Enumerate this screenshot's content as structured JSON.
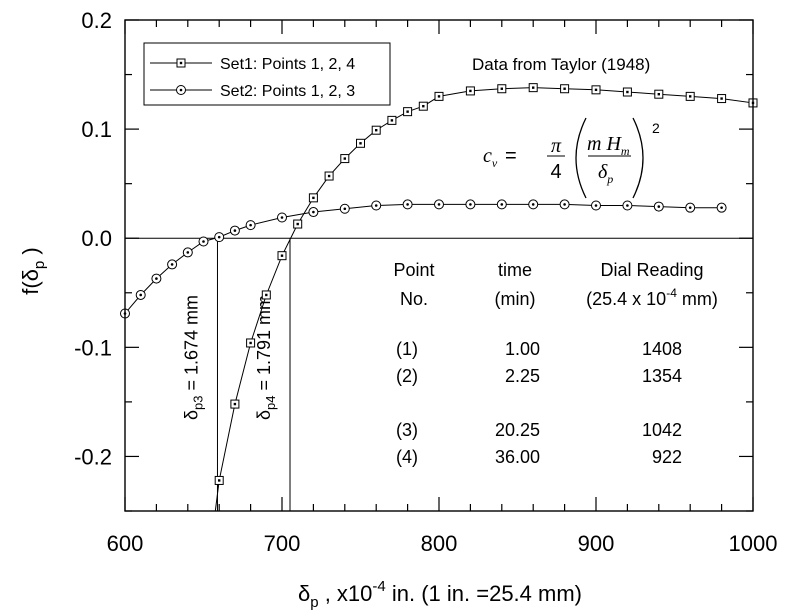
{
  "chart_data": {
    "type": "line",
    "xlabel": {
      "main": "δ",
      "sub": "p",
      "rest1": " ,  x10",
      "sup": "-4",
      "rest2": " in.   (1 in. =25.4 mm)"
    },
    "ylabel": {
      "main": "f(δ",
      "sub": "p",
      "rest": " )"
    },
    "xlim": [
      600,
      1000
    ],
    "ylim": [
      -0.25,
      0.2
    ],
    "x_ticks": [
      600,
      700,
      800,
      900,
      1000
    ],
    "x_tick_labels": [
      "600",
      "700",
      "800",
      "900",
      "1000"
    ],
    "y_ticks": [
      -0.2,
      -0.1,
      0.0,
      0.1,
      0.2
    ],
    "y_tick_labels": [
      "-0.2",
      "-0.1",
      "0.0",
      "0.1",
      "0.2"
    ],
    "grid": false,
    "legend_position": "top-left",
    "series": [
      {
        "name": "Set1: Points 1, 2, 4",
        "marker": "square",
        "x": [
          660,
          670,
          680,
          690,
          700,
          710,
          720,
          730,
          740,
          750,
          760,
          770,
          780,
          790,
          800,
          820,
          840,
          860,
          880,
          900,
          920,
          940,
          960,
          980,
          1000
        ],
        "y": [
          -0.222,
          -0.152,
          -0.096,
          -0.052,
          -0.016,
          0.013,
          0.037,
          0.057,
          0.073,
          0.087,
          0.099,
          0.108,
          0.116,
          0.121,
          0.13,
          0.135,
          0.137,
          0.138,
          0.137,
          0.136,
          0.134,
          0.132,
          0.13,
          0.128,
          0.124
        ]
      },
      {
        "name": "Set2: Points 1, 2, 3",
        "marker": "circle",
        "x": [
          600,
          610,
          620,
          630,
          640,
          650,
          660,
          670,
          680,
          700,
          720,
          740,
          760,
          780,
          800,
          820,
          840,
          860,
          880,
          900,
          920,
          940,
          960,
          980
        ],
        "y": [
          -0.069,
          -0.052,
          -0.037,
          -0.024,
          -0.013,
          -0.003,
          0.001,
          0.007,
          0.012,
          0.019,
          0.024,
          0.027,
          0.03,
          0.031,
          0.031,
          0.031,
          0.031,
          0.031,
          0.031,
          0.03,
          0.03,
          0.029,
          0.028,
          0.028
        ]
      }
    ],
    "vertical_lines": [
      {
        "x": 658.9,
        "label_main": "δ",
        "label_sub": "p3",
        "label_rest": " = 1.674 mm"
      },
      {
        "x": 705.1,
        "label_main": "δ",
        "label_sub": "p4",
        "label_rest": " = 1.791 mm"
      }
    ],
    "annotation_source": "Data from Taylor (1948)",
    "formula": {
      "lhs": "c",
      "lhs_sub": "v",
      "eq": " = ",
      "num": "π",
      "den": "4",
      "inner_num": "m H",
      "inner_num_sub": "m",
      "inner_den": "δ",
      "inner_den_sub": "p",
      "power": "2"
    },
    "table": {
      "headers": [
        [
          "Point",
          "time",
          "Dial Reading"
        ],
        [
          "No.",
          "(min)",
          {
            "pre": "(25.4 x 10",
            "sup": "-4",
            "post": " mm)"
          }
        ]
      ],
      "rows": [
        [
          "(1)",
          "1.00",
          "1408"
        ],
        [
          "(2)",
          "2.25",
          "1354"
        ],
        [
          "(3)",
          "20.25",
          "1042"
        ],
        [
          "(4)",
          "36.00",
          "922"
        ]
      ]
    }
  }
}
